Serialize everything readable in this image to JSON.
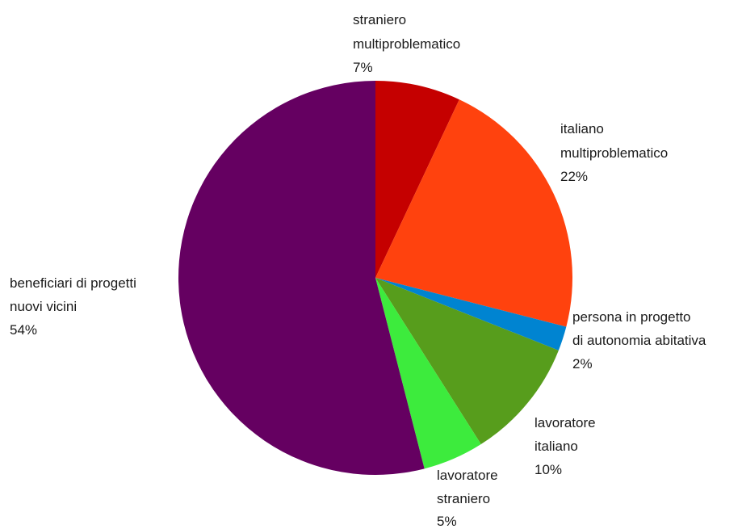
{
  "chart_data": {
    "type": "pie",
    "title": "",
    "slices": [
      {
        "label_lines": [
          "straniero",
          "multiproblematico"
        ],
        "value": 7,
        "value_label": "7%",
        "color": "#c50000"
      },
      {
        "label_lines": [
          "italiano",
          "multiproblematico"
        ],
        "value": 22,
        "value_label": "22%",
        "color": "#ff420e"
      },
      {
        "label_lines": [
          "persona in progetto",
          "di autonomia abitativa"
        ],
        "value": 2,
        "value_label": "2%",
        "color": "#0084d1"
      },
      {
        "label_lines": [
          "lavoratore",
          "italiano"
        ],
        "value": 10,
        "value_label": "10%",
        "color": "#579d1c"
      },
      {
        "label_lines": [
          "lavoratore",
          "straniero"
        ],
        "value": 5,
        "value_label": "5%",
        "color": "#3deb3d"
      },
      {
        "label_lines": [
          "beneficiari di progetti",
          "nuovi vicini"
        ],
        "value": 54,
        "value_label": "54%",
        "color": "#650061"
      }
    ],
    "start_angle_deg": 0,
    "direction": "clockwise",
    "legend": "none"
  }
}
